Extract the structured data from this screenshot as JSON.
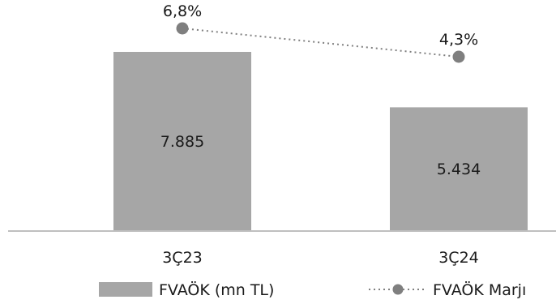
{
  "chart_data": {
    "type": "bar",
    "categories": [
      "3Ç23",
      "3Ç24"
    ],
    "series": [
      {
        "name": "FVAÖK (mn TL)",
        "kind": "bar",
        "values": [
          7885,
          5434
        ],
        "value_labels": [
          "7.885",
          "5.434"
        ],
        "color": "#a6a6a6"
      },
      {
        "name": "FVAÖK Marjı",
        "kind": "line",
        "style": "dotted",
        "values": [
          6.8,
          4.3
        ],
        "value_labels": [
          "6,8%",
          "4,3%"
        ],
        "color": "#7f7f7f"
      }
    ],
    "legend_position": "bottom",
    "grid": false
  }
}
